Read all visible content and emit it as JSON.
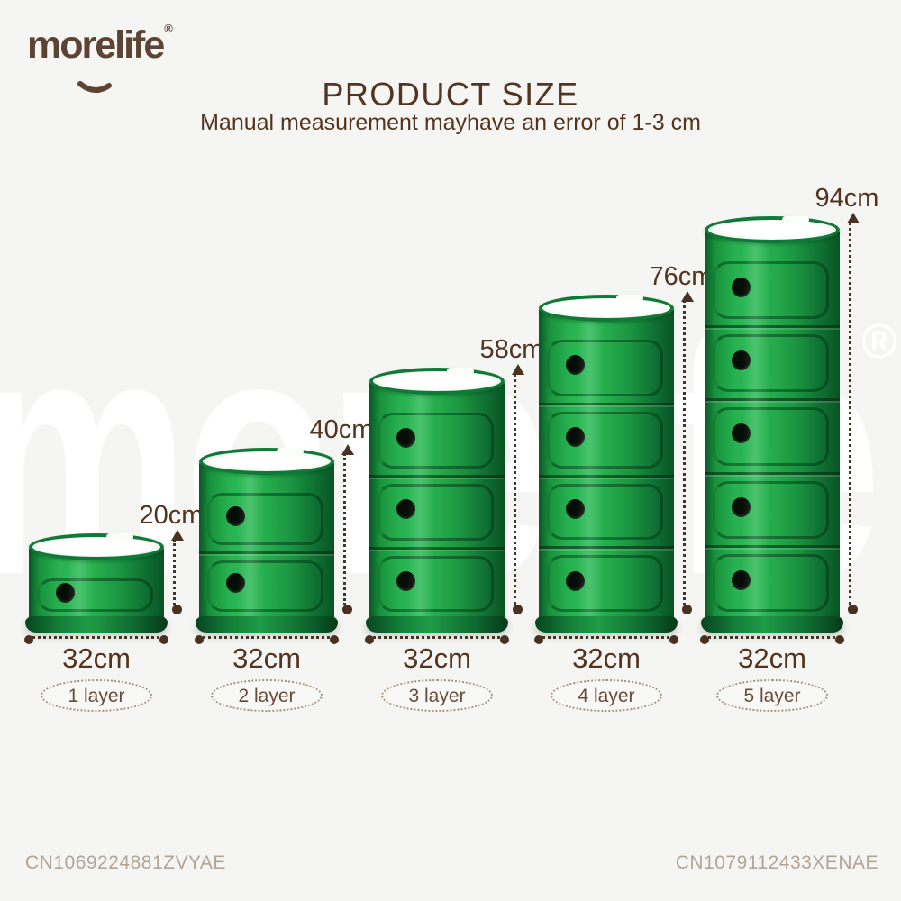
{
  "brand": {
    "logo_text": "morelife",
    "registered_mark": "®"
  },
  "header": {
    "title": "PRODUCT SIZE",
    "subtitle": "Manual measurement mayhave an error of 1-3 cm"
  },
  "watermark": {
    "text": "morelife",
    "registered_mark": "®"
  },
  "products": [
    {
      "layers": 1,
      "layers_label": "1 layer",
      "height_label": "20cm",
      "width_label": "32cm",
      "height_cm": 20,
      "width_cm": 32
    },
    {
      "layers": 2,
      "layers_label": "2 layer",
      "height_label": "40cm",
      "width_label": "32cm",
      "height_cm": 40,
      "width_cm": 32
    },
    {
      "layers": 3,
      "layers_label": "3 layer",
      "height_label": "58cm",
      "width_label": "32cm",
      "height_cm": 58,
      "width_cm": 32
    },
    {
      "layers": 4,
      "layers_label": "4 layer",
      "height_label": "76cm",
      "width_label": "32cm",
      "height_cm": 76,
      "width_cm": 32
    },
    {
      "layers": 5,
      "layers_label": "5 layer",
      "height_label": "94cm",
      "width_label": "32cm",
      "height_cm": 94,
      "width_cm": 32
    }
  ],
  "footer": {
    "left_code": "CN1069224881ZVYAE",
    "right_code": "CN1079112433XENAE"
  },
  "colors": {
    "background": "#f5f5f3",
    "text_brown": "#53341f",
    "logo_brown": "#5d4334",
    "dimension_brown": "#4a3222",
    "pill_text_brown": "#6b4a36",
    "code_gray": "#b3a596",
    "product_green_bright": "#2eba57",
    "product_green_dark": "#0b5727",
    "watermark_white": "#ffffff"
  }
}
